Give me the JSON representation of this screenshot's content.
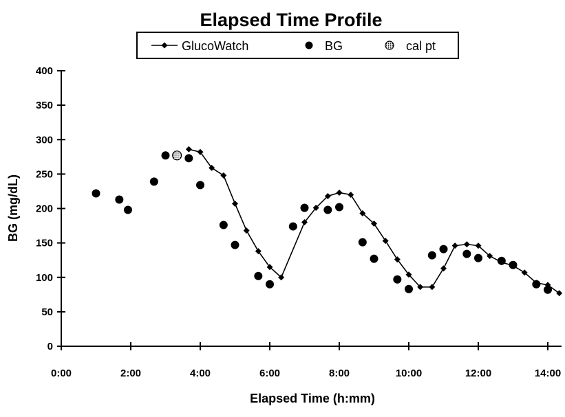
{
  "chart_data": {
    "type": "line",
    "title": "Elapsed Time Profile",
    "xlabel": "Elapsed Time (h:mm)",
    "ylabel": "BG (mg/dL)",
    "x_unit": "hours",
    "xlim": [
      0,
      14.5
    ],
    "ylim": [
      0,
      400
    ],
    "x_ticks": [
      0,
      2,
      4,
      6,
      8,
      10,
      12,
      14
    ],
    "x_tick_labels": [
      "0:00",
      "2:00",
      "4:00",
      "6:00",
      "8:00",
      "10:00",
      "12:00",
      "14:00"
    ],
    "y_ticks": [
      0,
      50,
      100,
      150,
      200,
      250,
      300,
      350,
      400
    ],
    "y_tick_labels": [
      "0",
      "50",
      "100",
      "150",
      "200",
      "250",
      "300",
      "350",
      "400"
    ],
    "grid": false,
    "legend": {
      "placement": "top",
      "entries": [
        "GlucoWatch",
        "BG",
        "cal pt"
      ]
    },
    "series": [
      {
        "name": "GlucoWatch",
        "style": "line-with-diamond-markers",
        "x": [
          3.67,
          4.0,
          4.33,
          4.67,
          5.0,
          5.33,
          5.67,
          6.0,
          6.33,
          7.0,
          7.33,
          7.67,
          8.0,
          8.33,
          8.67,
          9.0,
          9.33,
          9.67,
          10.0,
          10.33,
          10.67,
          11.0,
          11.33,
          11.67,
          12.0,
          12.33,
          12.67,
          13.0,
          13.33,
          13.67,
          14.0,
          14.33
        ],
        "y": [
          286,
          282,
          259,
          248,
          207,
          168,
          138,
          115,
          100,
          180,
          201,
          218,
          223,
          220,
          193,
          178,
          153,
          126,
          104,
          86,
          86,
          113,
          146,
          148,
          146,
          131,
          122,
          117,
          107,
          92,
          89,
          77
        ]
      },
      {
        "name": "BG",
        "style": "filled-circle-markers",
        "x": [
          1.0,
          1.67,
          1.92,
          2.67,
          3.0,
          3.67,
          4.0,
          4.67,
          5.0,
          5.67,
          6.0,
          6.67,
          7.0,
          7.67,
          8.0,
          8.67,
          9.0,
          9.67,
          10.0,
          10.67,
          11.0,
          11.67,
          12.0,
          12.67,
          13.0,
          13.67,
          14.0
        ],
        "y": [
          222,
          213,
          198,
          239,
          277,
          273,
          234,
          176,
          147,
          102,
          90,
          174,
          201,
          198,
          202,
          151,
          127,
          97,
          83,
          132,
          141,
          134,
          128,
          124,
          118,
          90,
          82
        ]
      },
      {
        "name": "cal pt",
        "style": "dotted-circle-marker",
        "x": [
          3.33
        ],
        "y": [
          277
        ]
      }
    ]
  }
}
